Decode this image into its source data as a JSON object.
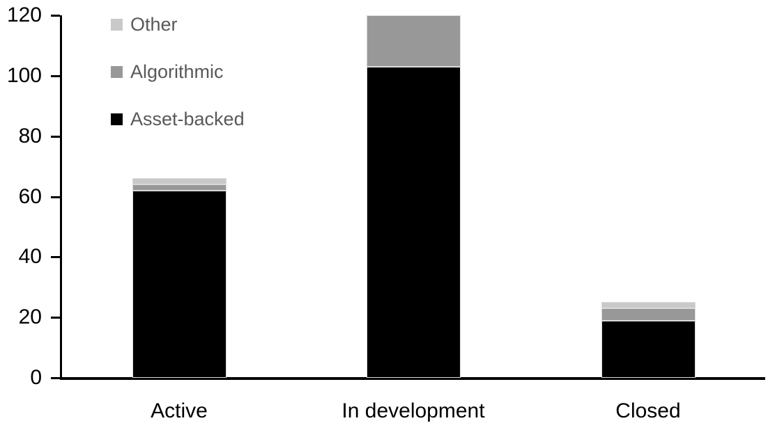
{
  "chart_data": {
    "type": "bar",
    "stacked": true,
    "title": "",
    "categories": [
      "Active",
      "In development",
      "Closed"
    ],
    "series": [
      {
        "name": "Asset-backed",
        "color": "#000000",
        "values": [
          62,
          103,
          19
        ]
      },
      {
        "name": "Algorithmic",
        "color": "#989898",
        "values": [
          2,
          17,
          4
        ]
      },
      {
        "name": "Other",
        "color": "#c9c9c9",
        "values": [
          2,
          0,
          2
        ]
      }
    ],
    "ylim": [
      0,
      120
    ],
    "yticks": [
      0,
      20,
      40,
      60,
      80,
      100,
      120
    ],
    "grid": false,
    "legend": {
      "position": "top-left",
      "order_top_to_bottom": [
        "Other",
        "Algorithmic",
        "Asset-backed"
      ],
      "text_color": "#595959"
    },
    "axis_color": "#000000",
    "bar_border_color": "#dadada"
  }
}
